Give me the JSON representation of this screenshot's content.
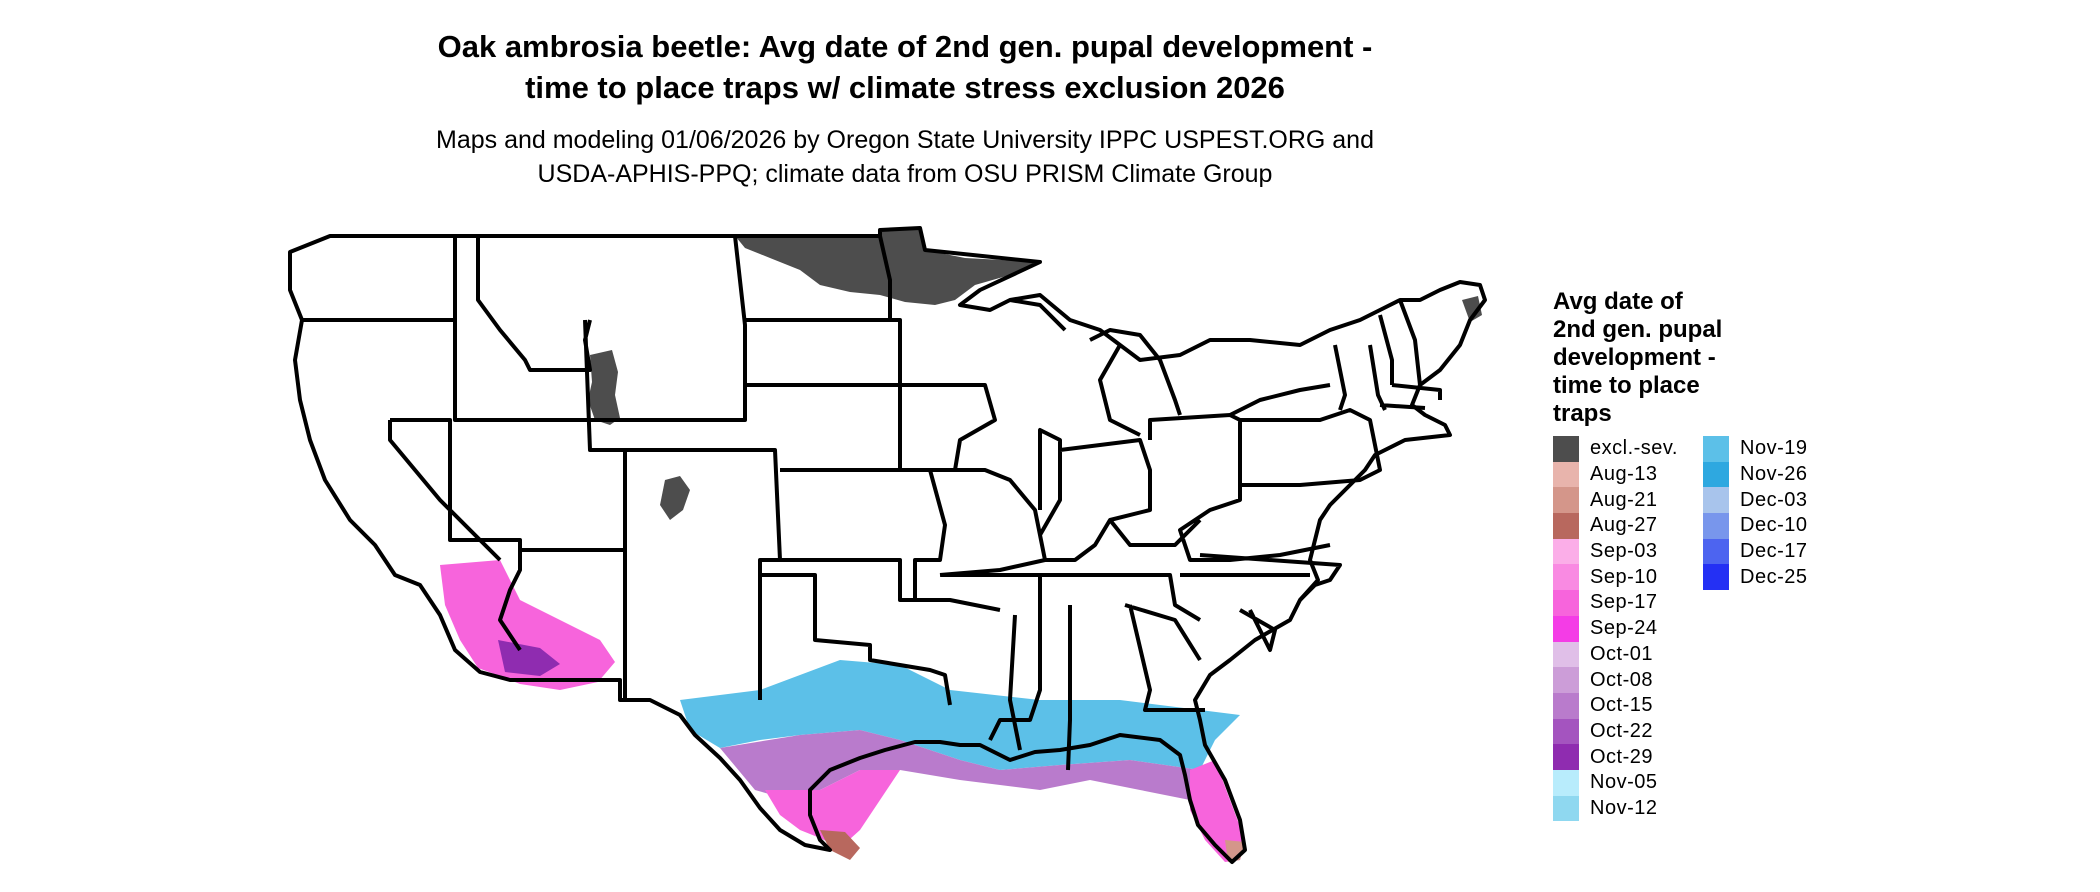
{
  "title": {
    "line1": "Oak ambrosia beetle: Avg date of 2nd gen. pupal development -",
    "line2": "time to place traps w/ climate stress exclusion 2026"
  },
  "subtitle": {
    "line1": "Maps and modeling 01/06/2026 by Oregon State University IPPC USPEST.ORG and",
    "line2": "USDA-APHIS-PPQ; climate data from OSU PRISM Climate Group"
  },
  "legend": {
    "title_lines": [
      "Avg date of",
      "2nd gen. pupal",
      "development -",
      "time to place",
      "traps"
    ],
    "column1": [
      {
        "label": "excl.-sev.",
        "color": "#4d4d4d"
      },
      {
        "label": "Aug-13",
        "color": "#e8b4ac"
      },
      {
        "label": "Aug-21",
        "color": "#d4968a"
      },
      {
        "label": "Aug-27",
        "color": "#b8685e"
      },
      {
        "label": "Sep-03",
        "color": "#fbaee8"
      },
      {
        "label": "Sep-10",
        "color": "#f98ae2"
      },
      {
        "label": "Sep-17",
        "color": "#f764dc"
      },
      {
        "label": "Sep-24",
        "color": "#f43ce6"
      },
      {
        "label": "Oct-01",
        "color": "#e0bfe8"
      },
      {
        "label": "Oct-08",
        "color": "#cc9dd8"
      },
      {
        "label": "Oct-15",
        "color": "#b97bcc"
      },
      {
        "label": "Oct-22",
        "color": "#a454bf"
      },
      {
        "label": "Oct-29",
        "color": "#8f2cb0"
      },
      {
        "label": "Nov-05",
        "color": "#b8ecfc"
      },
      {
        "label": "Nov-12",
        "color": "#8fd8f0"
      }
    ],
    "column2": [
      {
        "label": "Nov-19",
        "color": "#5cc0e8"
      },
      {
        "label": "Nov-26",
        "color": "#2ea8e0"
      },
      {
        "label": "Dec-03",
        "color": "#a8c4ec"
      },
      {
        "label": "Dec-10",
        "color": "#7896ec"
      },
      {
        "label": "Dec-17",
        "color": "#4d64f0"
      },
      {
        "label": "Dec-25",
        "color": "#2430f4"
      }
    ]
  }
}
